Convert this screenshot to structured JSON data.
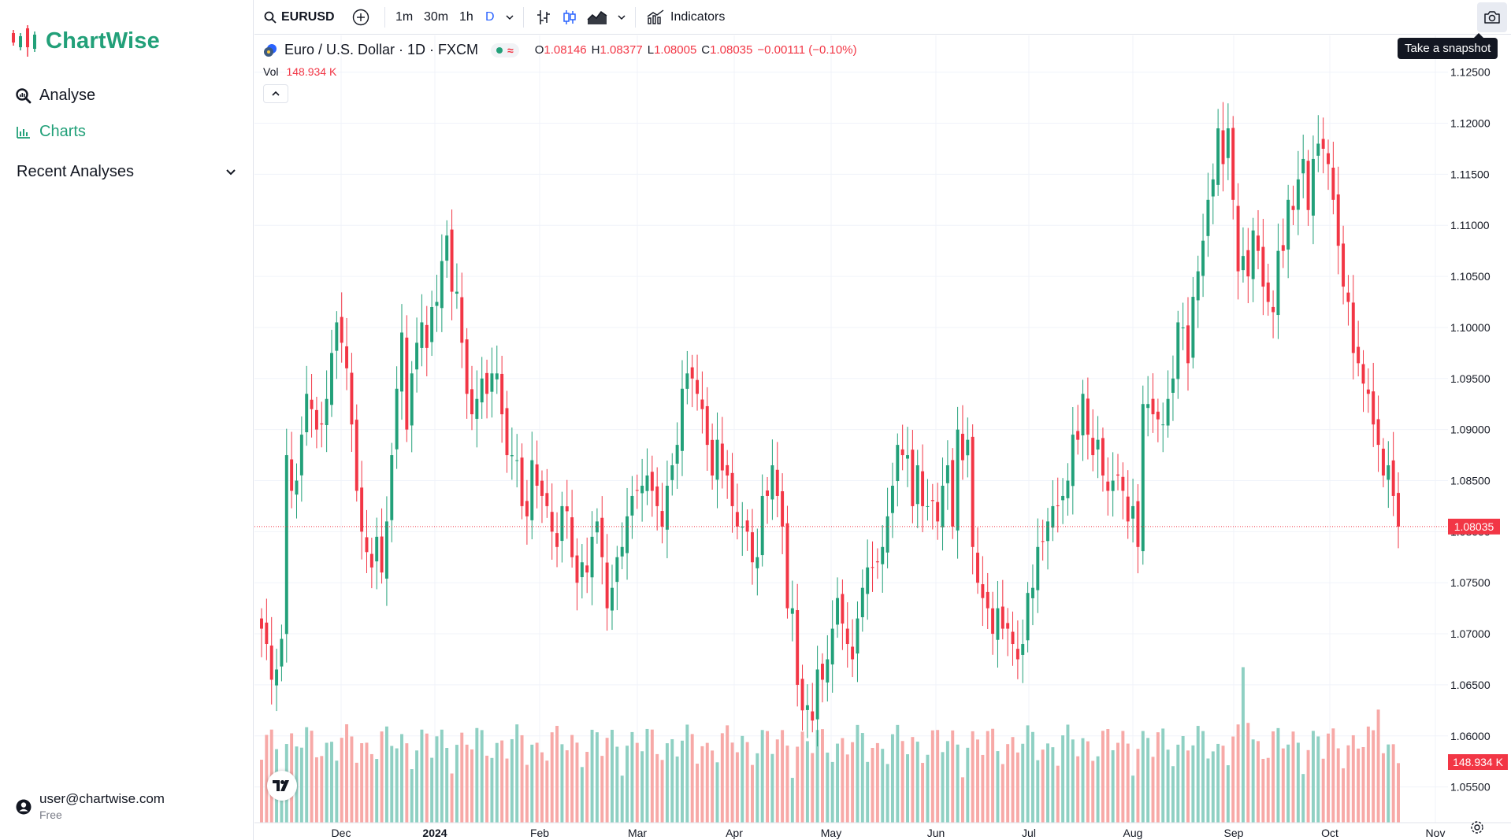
{
  "brand": {
    "name": "ChartWise"
  },
  "sidebar": {
    "items": [
      {
        "label": "Analyse",
        "icon": "analyse-icon"
      },
      {
        "label": "Charts",
        "icon": "bar-chart-icon",
        "active": true
      }
    ],
    "recent_label": "Recent Analyses",
    "user": {
      "email": "user@chartwise.com",
      "plan": "Free"
    }
  },
  "toolbar": {
    "symbol": "EURUSD",
    "intervals": [
      "1m",
      "30m",
      "1h",
      "D"
    ],
    "active_interval": "D",
    "indicators_label": "Indicators",
    "snapshot_tooltip": "Take a snapshot"
  },
  "legend": {
    "title": "Euro / U.S. Dollar · 1D · FXCM",
    "open_label": "O",
    "open": "1.08146",
    "high_label": "H",
    "high": "1.08377",
    "low_label": "L",
    "low": "1.08005",
    "close_label": "C",
    "close": "1.08035",
    "change": "−0.00111 (−0.10%)",
    "volume_label": "Vol",
    "volume": "148.934 K"
  },
  "colors": {
    "up": "#22a079",
    "down": "#f23645",
    "up_vol": "#8fd0c3",
    "down_vol": "#f7a9a7",
    "brand": "#22a079",
    "accent": "#2962ff"
  },
  "chart_data": {
    "type": "candlestick",
    "symbol": "EURUSD",
    "y_ticks": [
      "1.12500",
      "1.12000",
      "1.11500",
      "1.11000",
      "1.10500",
      "1.10000",
      "1.09500",
      "1.09000",
      "1.08500",
      "1.08000",
      "1.07500",
      "1.07000",
      "1.06500",
      "1.06000",
      "1.05500"
    ],
    "y_range": [
      1.0515,
      1.1286
    ],
    "x_ticks": [
      "Dec",
      "2024",
      "Feb",
      "Mar",
      "Apr",
      "May",
      "Jun",
      "Jul",
      "Aug",
      "Sep",
      "Oct",
      "Nov"
    ],
    "last_price_label": "1.08035",
    "last_volume_label": "148.934 K",
    "closes": [
      1.0705,
      1.069,
      1.0655,
      1.0665,
      1.0695,
      1.0875,
      1.084,
      1.085,
      1.0895,
      1.0935,
      1.092,
      1.09,
      1.0905,
      1.093,
      1.0975,
      1.1005,
      1.0985,
      1.096,
      1.0905,
      1.084,
      1.08,
      1.078,
      1.0765,
      1.0795,
      1.076,
      1.081,
      1.0875,
      1.094,
      1.0995,
      1.09,
      1.0955,
      1.0985,
      1.1005,
      1.098,
      1.102,
      1.1025,
      1.1065,
      1.109,
      1.1035,
      1.1035,
      1.0985,
      1.0935,
      1.0915,
      1.093,
      1.095,
      1.0935,
      1.0955,
      1.0955,
      1.0915,
      1.0875,
      1.0875,
      1.087,
      1.0825,
      1.0815,
      1.087,
      1.0845,
      1.0835,
      1.0825,
      1.08,
      1.0785,
      1.0825,
      1.082,
      1.0775,
      1.075,
      1.077,
      1.076,
      1.0795,
      1.081,
      1.0775,
      1.0725,
      1.0745,
      1.0775,
      1.0785,
      1.0815,
      1.0835,
      1.084,
      1.0845,
      1.0855,
      1.084,
      1.0825,
      1.0805,
      1.0845,
      1.0865,
      1.0885,
      1.094,
      1.0955,
      1.095,
      1.0935,
      1.092,
      1.0885,
      1.0855,
      1.089,
      1.086,
      1.0855,
      1.0825,
      1.0805,
      1.0805,
      1.08,
      1.077,
      1.0775,
      1.0835,
      1.0835,
      1.0865,
      1.0835,
      1.0805,
      1.0725,
      1.0725,
      1.065,
      1.0625,
      1.063,
      1.0615,
      1.0665,
      1.0655,
      1.0675,
      1.0705,
      1.0735,
      1.071,
      1.069,
      1.0675,
      1.0715,
      1.0745,
      1.0765,
      1.0765,
      1.077,
      1.0785,
      1.0815,
      1.0845,
      1.0885,
      1.0875,
      1.0875,
      1.0825,
      1.0865,
      1.0825,
      1.0825,
      1.083,
      1.081,
      1.0845,
      1.0865,
      1.0805,
      1.09,
      1.087,
      1.089,
      1.0785,
      1.075,
      1.0735,
      1.0725,
      1.07,
      1.0725,
      1.0705,
      1.0705,
      1.069,
      1.0675,
      1.069,
      1.074,
      1.0745,
      1.0785,
      1.079,
      1.081,
      1.0825,
      1.0825,
      1.0835,
      1.085,
      1.0895,
      1.089,
      1.0935,
      1.0895,
      1.0875,
      1.089,
      1.0855,
      1.084,
      1.085,
      1.0855,
      1.084,
      1.081,
      1.0825,
      1.0785,
      1.0925,
      1.0925,
      1.0915,
      1.091,
      1.0905,
      1.093,
      1.095,
      1.1005,
      1.1,
      1.0965,
      1.103,
      1.1055,
      1.1085,
      1.1125,
      1.1145,
      1.1195,
      1.116,
      1.1195,
      1.1125,
      1.1055,
      1.107,
      1.105,
      1.1095,
      1.1075,
      1.104,
      1.1025,
      1.1015,
      1.1075,
      1.1075,
      1.1125,
      1.1115,
      1.1145,
      1.1165,
      1.1115,
      1.1165,
      1.118,
      1.1175,
      1.116,
      1.1125,
      1.108,
      1.104,
      1.1025,
      1.0975,
      1.0965,
      1.0945,
      1.0935,
      1.0905,
      1.0885,
      1.0855,
      1.0865,
      1.0835,
      1.0805
    ]
  }
}
